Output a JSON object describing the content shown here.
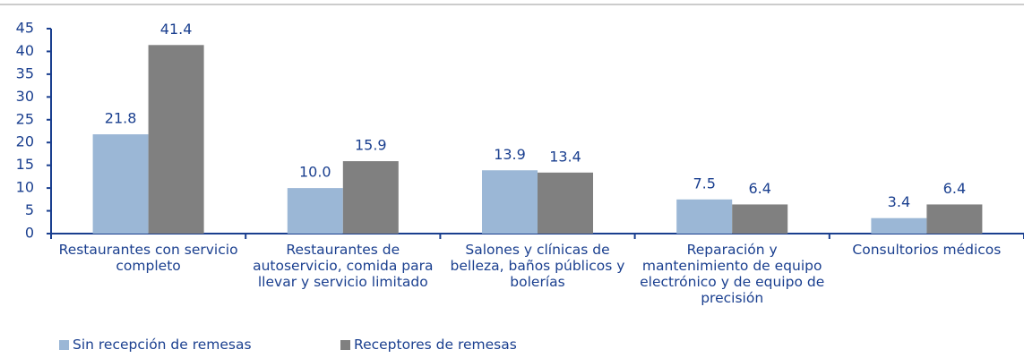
{
  "chart_data": {
    "type": "bar",
    "categories": [
      "Restaurantes con servicio completo",
      "Restaurantes de autoservicio, comida para llevar y servicio limitado",
      "Salones y clínicas de belleza, baños públicos y bolerías",
      "Reparación y mantenimiento de equipo electrónico y de equipo de precisión",
      "Consultorios médicos"
    ],
    "series": [
      {
        "name": "Sin recepción de remesas",
        "color": "#9bb7d6",
        "values": [
          21.8,
          10,
          13.9,
          7.5,
          3.4
        ],
        "value_labels": [
          "21.8",
          "10.0",
          "13.9",
          "7.5",
          "3.4"
        ]
      },
      {
        "name": "Receptores de remesas",
        "color": "#808080",
        "values": [
          41.4,
          15.9,
          13.4,
          6.4,
          6.4
        ]
      }
    ],
    "ylim": [
      0,
      45
    ],
    "yticks": [
      0,
      5,
      10,
      15,
      20,
      25,
      30,
      35,
      40,
      45
    ],
    "grid": false,
    "legend": "bottom-left"
  }
}
